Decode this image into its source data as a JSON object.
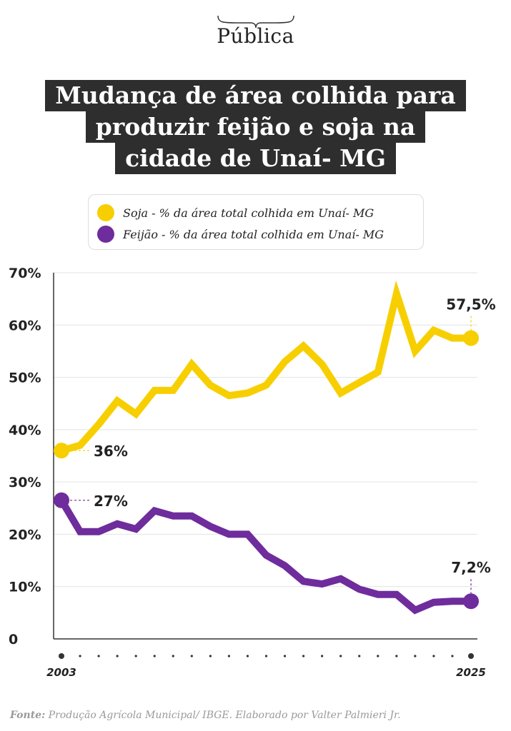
{
  "header": {
    "logo_text": "Pública",
    "title_lines": [
      "Mudança de área colhida para",
      "produzir feijão e soja na",
      "cidade de Unaí- MG"
    ]
  },
  "colors": {
    "soja": "#f7cf00",
    "feijao": "#6f2c9c",
    "grid": "#e3e3e3",
    "text": "#222222"
  },
  "legend": [
    {
      "label": "Soja - % da área total colhida em Unaí- MG"
    },
    {
      "label": "Feijão - % da área total colhida em Unaí- MG"
    }
  ],
  "chart_data": {
    "type": "line",
    "x": [
      2003,
      2004,
      2005,
      2006,
      2007,
      2008,
      2009,
      2010,
      2011,
      2012,
      2013,
      2014,
      2015,
      2016,
      2017,
      2018,
      2019,
      2020,
      2021,
      2022,
      2023,
      2024,
      2025
    ],
    "series": [
      {
        "key": "soja",
        "values": [
          36,
          37,
          41,
          45.5,
          43,
          47.5,
          47.5,
          52.5,
          48.5,
          46.5,
          47,
          48.5,
          53,
          56,
          52.5,
          47,
          49,
          51,
          66,
          55,
          59,
          57.5,
          57.5
        ],
        "start_label": "36%",
        "end_label": "57,5%"
      },
      {
        "key": "feijao",
        "values": [
          26.5,
          20.5,
          20.5,
          22,
          21,
          24.5,
          23.5,
          23.5,
          21.5,
          20,
          20,
          16,
          14,
          11,
          10.5,
          11.5,
          9.5,
          8.5,
          8.5,
          5.5,
          7,
          7.2,
          7.2
        ],
        "start_label": "27%",
        "end_label": "7,2%"
      }
    ],
    "yticks": [
      0,
      10,
      20,
      30,
      40,
      50,
      60,
      70
    ],
    "ytick_labels": [
      "0",
      "10%",
      "20%",
      "30%",
      "40%",
      "50%",
      "60%",
      "70%"
    ],
    "xtick_labels": {
      "first": "2003",
      "last": "2025"
    },
    "ylim": [
      0,
      70
    ],
    "grid": true
  },
  "footer": {
    "source_label": "Fonte:",
    "source_text": " Produção Agrícola Municipal/ IBGE. Elaborado por Valter Palmieri Jr."
  }
}
